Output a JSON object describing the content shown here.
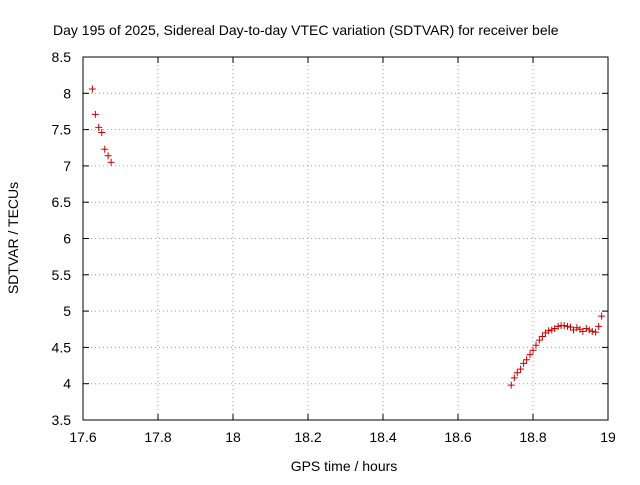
{
  "chart_data": {
    "type": "scatter",
    "title": "Day 195 of 2025, Sidereal Day-to-day VTEC variation (SDTVAR) for receiver bele",
    "xlabel": "GPS time / hours",
    "ylabel": "SDTVAR / TECUs",
    "xlim": [
      17.6,
      19.0
    ],
    "ylim": [
      3.5,
      8.5
    ],
    "xticks": [
      17.6,
      17.8,
      18.0,
      18.2,
      18.4,
      18.6,
      18.8,
      19.0
    ],
    "xtick_labels": [
      "17.6",
      "17.8",
      "18",
      "18.2",
      "18.4",
      "18.6",
      "18.8",
      "19"
    ],
    "yticks": [
      3.5,
      4.0,
      4.5,
      5.0,
      5.5,
      6.0,
      6.5,
      7.0,
      7.5,
      8.0,
      8.5
    ],
    "ytick_labels": [
      "3.5",
      "4",
      "4.5",
      "5",
      "5.5",
      "6",
      "6.5",
      "7",
      "7.5",
      "8",
      "8.5"
    ],
    "grid": true,
    "marker": "+",
    "marker_color": "#cc0000",
    "series": [
      {
        "name": "SDTVAR",
        "x": [
          17.625,
          17.633,
          17.642,
          17.65,
          17.658,
          17.667,
          17.675,
          18.742,
          18.75,
          18.758,
          18.767,
          18.775,
          18.783,
          18.792,
          18.8,
          18.808,
          18.817,
          18.825,
          18.833,
          18.842,
          18.85,
          18.858,
          18.867,
          18.875,
          18.883,
          18.892,
          18.9,
          18.908,
          18.917,
          18.925,
          18.933,
          18.942,
          18.95,
          18.958,
          18.967,
          18.975,
          18.983
        ],
        "y": [
          8.06,
          7.71,
          7.53,
          7.46,
          7.23,
          7.14,
          7.05,
          3.98,
          4.08,
          4.15,
          4.2,
          4.28,
          4.33,
          4.4,
          4.46,
          4.53,
          4.6,
          4.65,
          4.7,
          4.73,
          4.74,
          4.76,
          4.79,
          4.8,
          4.8,
          4.79,
          4.78,
          4.74,
          4.77,
          4.75,
          4.72,
          4.76,
          4.74,
          4.72,
          4.71,
          4.79,
          4.93
        ]
      }
    ]
  }
}
